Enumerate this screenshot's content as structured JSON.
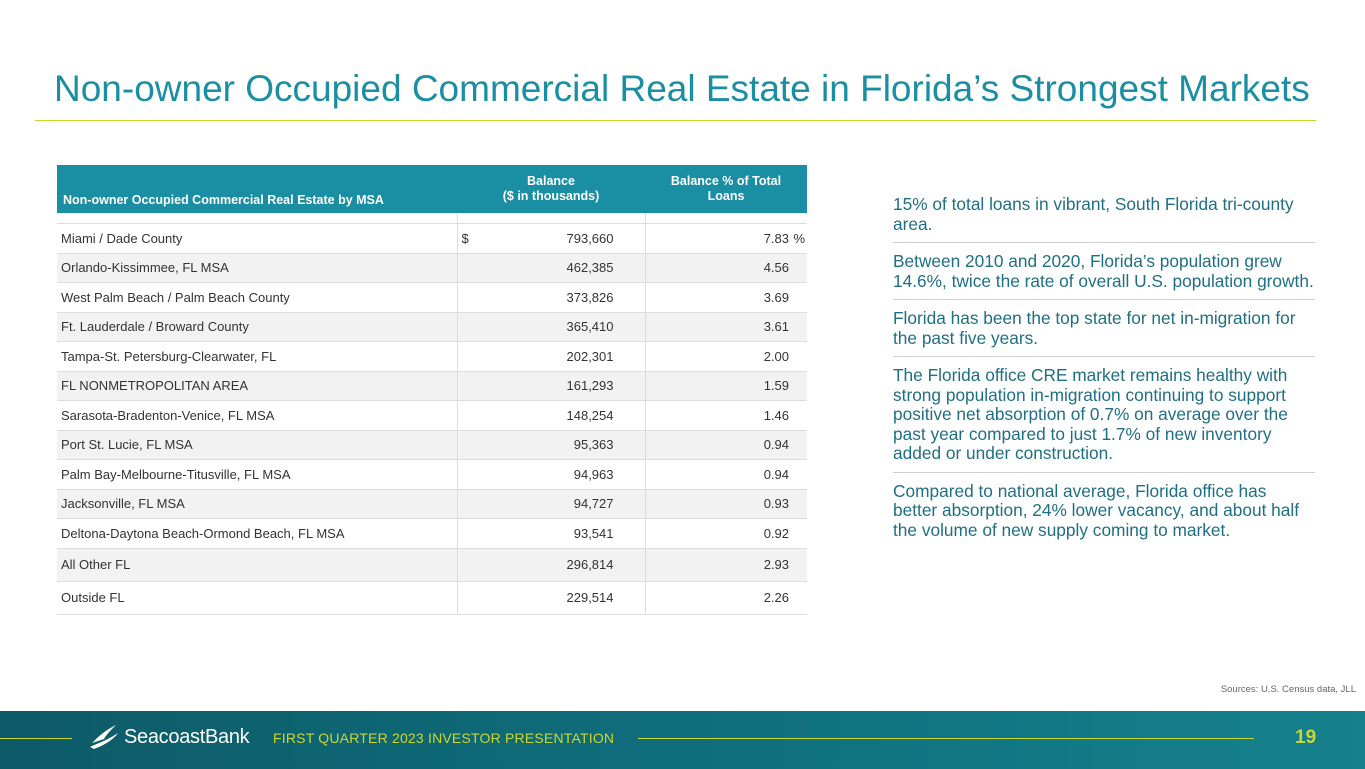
{
  "slide": {
    "title": "Non-owner Occupied Commercial Real Estate in Florida’s Strongest Markets"
  },
  "table": {
    "headers": {
      "msa": "Non-owner Occupied Commercial Real Estate by MSA",
      "balance_line1": "Balance",
      "balance_line2": "($ in thousands)",
      "pct_line1": "Balance % of Total",
      "pct_line2": "Loans"
    },
    "currency_symbol": "$",
    "percent_symbol": "%",
    "rows": [
      {
        "msa": "Miami / Dade County",
        "balance": "793,660",
        "pct": "7.83"
      },
      {
        "msa": "Orlando-Kissimmee, FL MSA",
        "balance": "462,385",
        "pct": "4.56"
      },
      {
        "msa": "West Palm Beach / Palm Beach County",
        "balance": "373,826",
        "pct": "3.69"
      },
      {
        "msa": "Ft. Lauderdale / Broward County",
        "balance": "365,410",
        "pct": "3.61"
      },
      {
        "msa": "Tampa-St. Petersburg-Clearwater, FL",
        "balance": "202,301",
        "pct": "2.00"
      },
      {
        "msa": "FL NONMETROPOLITAN AREA",
        "balance": "161,293",
        "pct": "1.59"
      },
      {
        "msa": "Sarasota-Bradenton-Venice, FL MSA",
        "balance": "148,254",
        "pct": "1.46"
      },
      {
        "msa": "Port St. Lucie, FL MSA",
        "balance": "95,363",
        "pct": "0.94"
      },
      {
        "msa": "Palm Bay-Melbourne-Titusville, FL MSA",
        "balance": "94,963",
        "pct": "0.94"
      },
      {
        "msa": "Jacksonville, FL MSA",
        "balance": "94,727",
        "pct": "0.93"
      },
      {
        "msa": "Deltona-Daytona Beach-Ormond Beach, FL MSA",
        "balance": "93,541",
        "pct": "0.92"
      },
      {
        "msa": "All Other FL",
        "balance": "296,814",
        "pct": "2.93"
      },
      {
        "msa": "Outside FL",
        "balance": "229,514",
        "pct": "2.26"
      }
    ]
  },
  "bullets": [
    "15% of total loans in vibrant, South Florida tri-county area.",
    "Between 2010 and 2020, Florida’s population grew 14.6%, twice the rate of overall U.S. population growth.",
    "Florida has been the top state for net in-migration for the past five years.",
    "The Florida office CRE market remains healthy with strong population in-migration continuing to support positive net absorption of 0.7% on average over the past year compared to just 1.7% of new inventory added or under construction.",
    "Compared to national average, Florida office has better absorption, 24% lower vacancy, and about half the volume of new supply coming to market."
  ],
  "sources": "Sources: U.S. Census data, JLL",
  "footer": {
    "brand": "SeacoastBank",
    "presentation_title": "FIRST QUARTER 2023 INVESTOR PRESENTATION",
    "page_number": "19"
  },
  "colors": {
    "accent": "#1a8ea2",
    "lime": "#c9d730",
    "footer_bg": "#0d5a67"
  }
}
